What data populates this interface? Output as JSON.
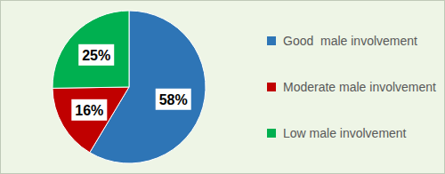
{
  "chart_data": {
    "type": "pie",
    "categories": [
      "Good  male involvement",
      "Moderate male involvement",
      "Low male involvement"
    ],
    "values": [
      58,
      16,
      25
    ],
    "value_labels": [
      "58%",
      "16%",
      "25%"
    ],
    "colors": [
      "#2e75b6",
      "#c00000",
      "#00b050"
    ],
    "data_labels": true,
    "legend": "right"
  }
}
